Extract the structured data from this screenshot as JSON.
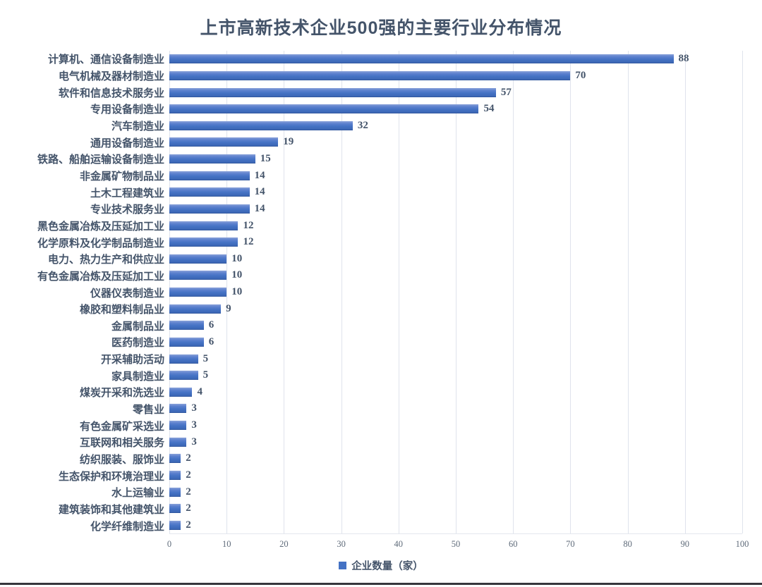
{
  "chart_data": {
    "type": "bar",
    "orientation": "horizontal",
    "title": "上市高新技术企业500强的主要行业分布情况",
    "legend_label": "企业数量（家）",
    "categories": [
      "计算机、通信设备制造业",
      "电气机械及器材制造业",
      "软件和信息技术服务业",
      "专用设备制造业",
      "汽车制造业",
      "通用设备制造业",
      "铁路、船舶运输设备制造业",
      "非金属矿物制品业",
      "土木工程建筑业",
      "专业技术服务业",
      "黑色金属冶炼及压延加工业",
      "化学原料及化学制品制造业",
      "电力、热力生产和供应业",
      "有色金属冶炼及压延加工业",
      "仪器仪表制造业",
      "橡胶和塑料制品业",
      "金属制品业",
      "医药制造业",
      "开采辅助活动",
      "家具制造业",
      "煤炭开采和洗选业",
      "零售业",
      "有色金属矿采选业",
      "互联网和相关服务",
      "纺织服装、服饰业",
      "生态保护和环境治理业",
      "水上运输业",
      "建筑装饰和其他建筑业",
      "化学纤维制造业"
    ],
    "values": [
      88,
      70,
      57,
      54,
      32,
      19,
      15,
      14,
      14,
      14,
      12,
      12,
      10,
      10,
      10,
      9,
      6,
      6,
      5,
      5,
      4,
      3,
      3,
      3,
      2,
      2,
      2,
      2,
      2
    ],
    "xlim": [
      0,
      100
    ],
    "xticks": [
      0,
      10,
      20,
      30,
      40,
      50,
      60,
      70,
      80,
      90,
      100
    ],
    "grid": "vertical",
    "legend_position": "bottom",
    "bar_color": "#4472C4",
    "text_color": "#44546A",
    "gridline_color": "#dfe3ec"
  }
}
